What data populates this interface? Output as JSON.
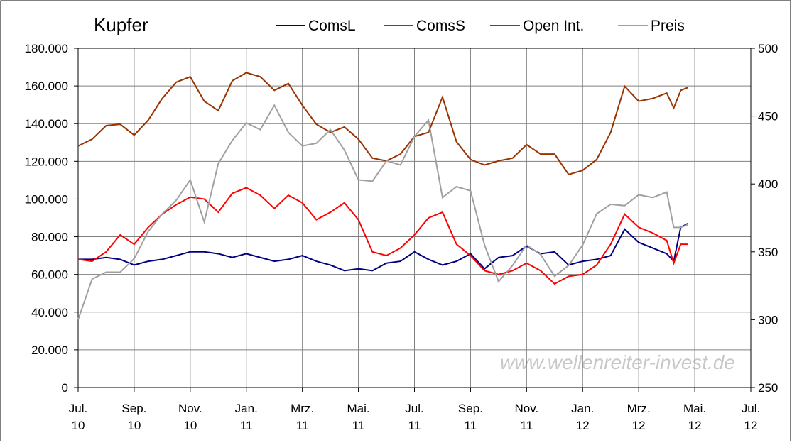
{
  "chart_data": {
    "type": "line",
    "title": "Kupfer",
    "watermark": "www.wellenreiter-invest.de",
    "x": [
      0,
      0.5,
      1,
      1.5,
      2,
      2.5,
      3,
      3.5,
      4,
      4.5,
      5,
      5.5,
      6,
      6.5,
      7,
      7.5,
      8,
      8.5,
      9,
      9.5,
      10,
      10.5,
      11,
      11.5,
      12,
      12.5,
      13,
      13.5,
      14,
      14.5,
      15,
      15.5,
      16,
      16.5,
      17,
      17.5,
      18,
      18.5,
      19,
      19.5,
      20,
      20.5,
      21,
      21.25,
      21.5,
      21.75
    ],
    "series": [
      {
        "name": "ComsL",
        "color": "#000080",
        "values": [
          68,
          68,
          69,
          68,
          65,
          67,
          68,
          70,
          72,
          72,
          71,
          69,
          71,
          69,
          67,
          68,
          70,
          67,
          65,
          62,
          63,
          62,
          66,
          67,
          72,
          68,
          65,
          67,
          71,
          63,
          69,
          70,
          75,
          71,
          72,
          65,
          67,
          68,
          70,
          84,
          77,
          74,
          71,
          67,
          85,
          87
        ]
      },
      {
        "name": "ComsS",
        "color": "#ff0000",
        "values": [
          68,
          67,
          72,
          81,
          76,
          85,
          92,
          97,
          101,
          100,
          93,
          103,
          106,
          102,
          95,
          102,
          98,
          89,
          93,
          98,
          89,
          72,
          70,
          74,
          81,
          90,
          93,
          76,
          70,
          62,
          60,
          62,
          66,
          62,
          55,
          59,
          60,
          65,
          76,
          92,
          85,
          82,
          78,
          66,
          76,
          76
        ]
      },
      {
        "name": "Open Int.",
        "color": "#993300",
        "axis": "y2",
        "values": [
          428,
          433,
          443,
          444,
          436,
          447,
          463,
          475,
          479,
          461,
          454,
          476,
          482,
          479,
          469,
          474,
          458,
          444,
          438,
          442,
          433,
          419,
          417,
          422,
          435,
          438,
          464,
          431,
          418,
          414,
          417,
          419,
          429,
          422,
          422,
          407,
          410,
          418,
          438,
          472,
          461,
          463,
          467,
          456,
          469,
          471
        ]
      },
      {
        "name": "Preis",
        "color": "#a0a0a0",
        "axis": "y2",
        "values": [
          300,
          330,
          335,
          335,
          345,
          365,
          378,
          388,
          403,
          372,
          415,
          432,
          445,
          440,
          458,
          438,
          428,
          430,
          440,
          425,
          403,
          402,
          417,
          414,
          435,
          447,
          390,
          398,
          395,
          355,
          328,
          340,
          355,
          348,
          332,
          340,
          355,
          378,
          385,
          384,
          392,
          390,
          394,
          368,
          368,
          370
        ]
      }
    ],
    "ylim": [
      0,
      180
    ],
    "yticks": [
      {
        "value": 0,
        "label": "0"
      },
      {
        "value": 20,
        "label": "20.000"
      },
      {
        "value": 40,
        "label": "40.000"
      },
      {
        "value": 60,
        "label": "60.000"
      },
      {
        "value": 80,
        "label": "80.000"
      },
      {
        "value": 100,
        "label": "100.000"
      },
      {
        "value": 120,
        "label": "120.000"
      },
      {
        "value": 140,
        "label": "140.000"
      },
      {
        "value": 160,
        "label": "160.000"
      },
      {
        "value": 180,
        "label": "180.000"
      }
    ],
    "y2lim": [
      250,
      500
    ],
    "y2ticks": [
      250,
      300,
      350,
      400,
      450,
      500
    ],
    "xlim": [
      0,
      24
    ],
    "xticks": [
      {
        "value": 0,
        "label": "Jul. 10"
      },
      {
        "value": 2,
        "label": "Sep. 10"
      },
      {
        "value": 4,
        "label": "Nov. 10"
      },
      {
        "value": 6,
        "label": "Jan. 11"
      },
      {
        "value": 8,
        "label": "Mrz. 11"
      },
      {
        "value": 10,
        "label": "Mai. 11"
      },
      {
        "value": 12,
        "label": "Jul. 11"
      },
      {
        "value": 14,
        "label": "Sep. 11"
      },
      {
        "value": 16,
        "label": "Nov. 11"
      },
      {
        "value": 18,
        "label": "Jan. 12"
      },
      {
        "value": 20,
        "label": "Mrz. 12"
      },
      {
        "value": 22,
        "label": "Mai. 12"
      },
      {
        "value": 24,
        "label": "Jul. 12"
      }
    ],
    "grid": true
  }
}
